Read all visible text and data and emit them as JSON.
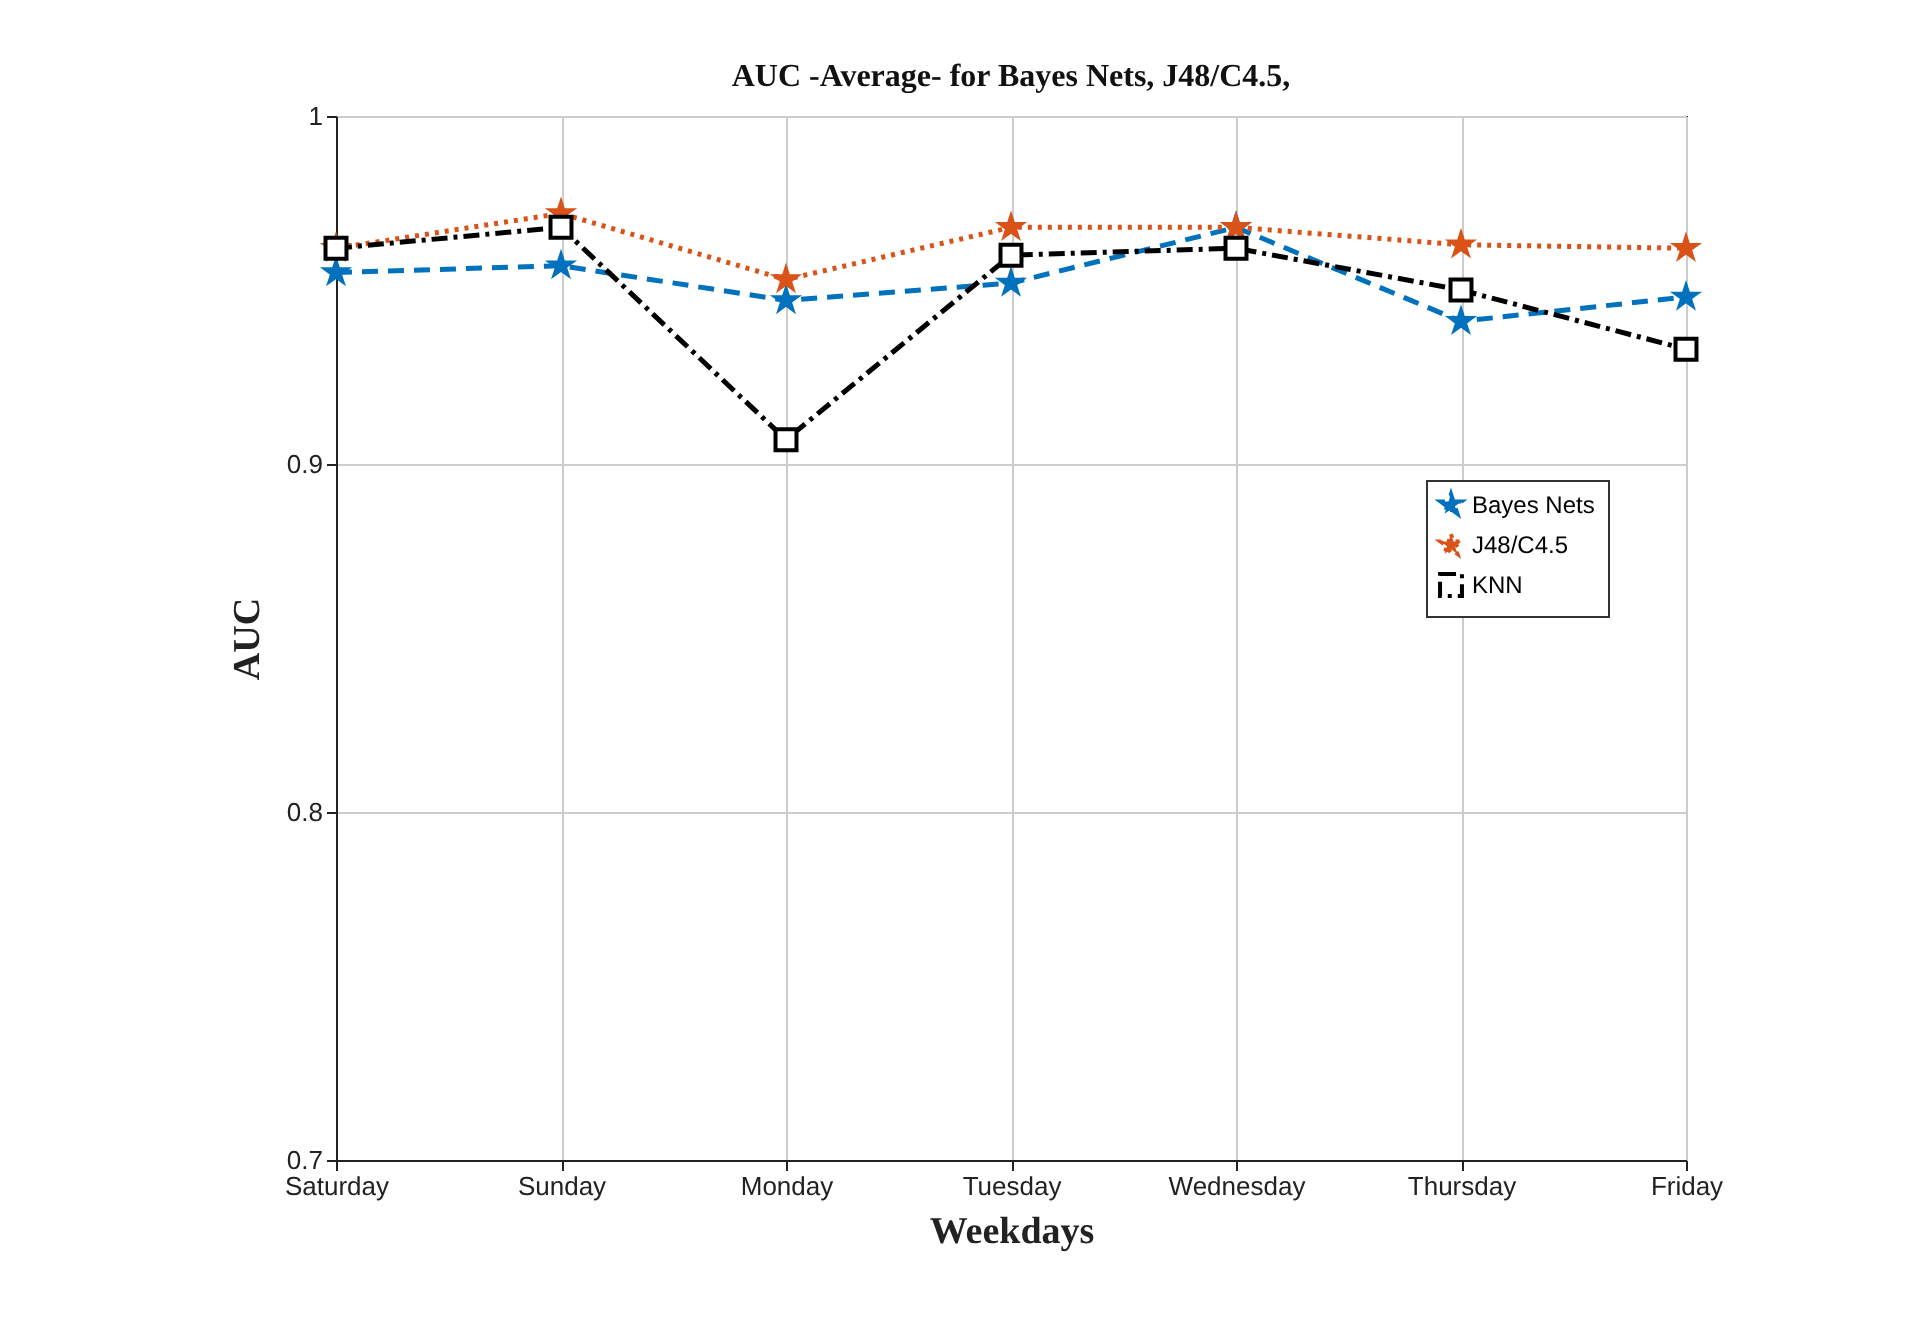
{
  "chart_data": {
    "type": "line",
    "title": "AUC -Average- for Bayes Nets, J48/C4.5,",
    "xlabel": "Weekdays",
    "ylabel": "AUC",
    "categories": [
      "Saturday",
      "Sunday",
      "Monday",
      "Tuesday",
      "Wednesday",
      "Thursday",
      "Friday"
    ],
    "series": [
      {
        "name": "Bayes Nets",
        "color": "#0072bd",
        "marker": "star",
        "line_style": "dashed",
        "values": [
          0.955,
          0.957,
          0.947,
          0.952,
          0.968,
          0.941,
          0.948
        ]
      },
      {
        "name": "J48/C4.5",
        "color": "#d95319",
        "marker": "star",
        "line_style": "dotted",
        "values": [
          0.962,
          0.972,
          0.953,
          0.968,
          0.968,
          0.963,
          0.962
        ]
      },
      {
        "name": "KNN",
        "color": "#000000",
        "marker": "square",
        "line_style": "dashdot",
        "values": [
          0.962,
          0.968,
          0.907,
          0.96,
          0.962,
          0.95,
          0.933
        ]
      }
    ],
    "ylim": [
      0.7,
      1
    ],
    "yticks": [
      0.7,
      0.8,
      0.9,
      1
    ],
    "grid": true,
    "legend": "right"
  }
}
